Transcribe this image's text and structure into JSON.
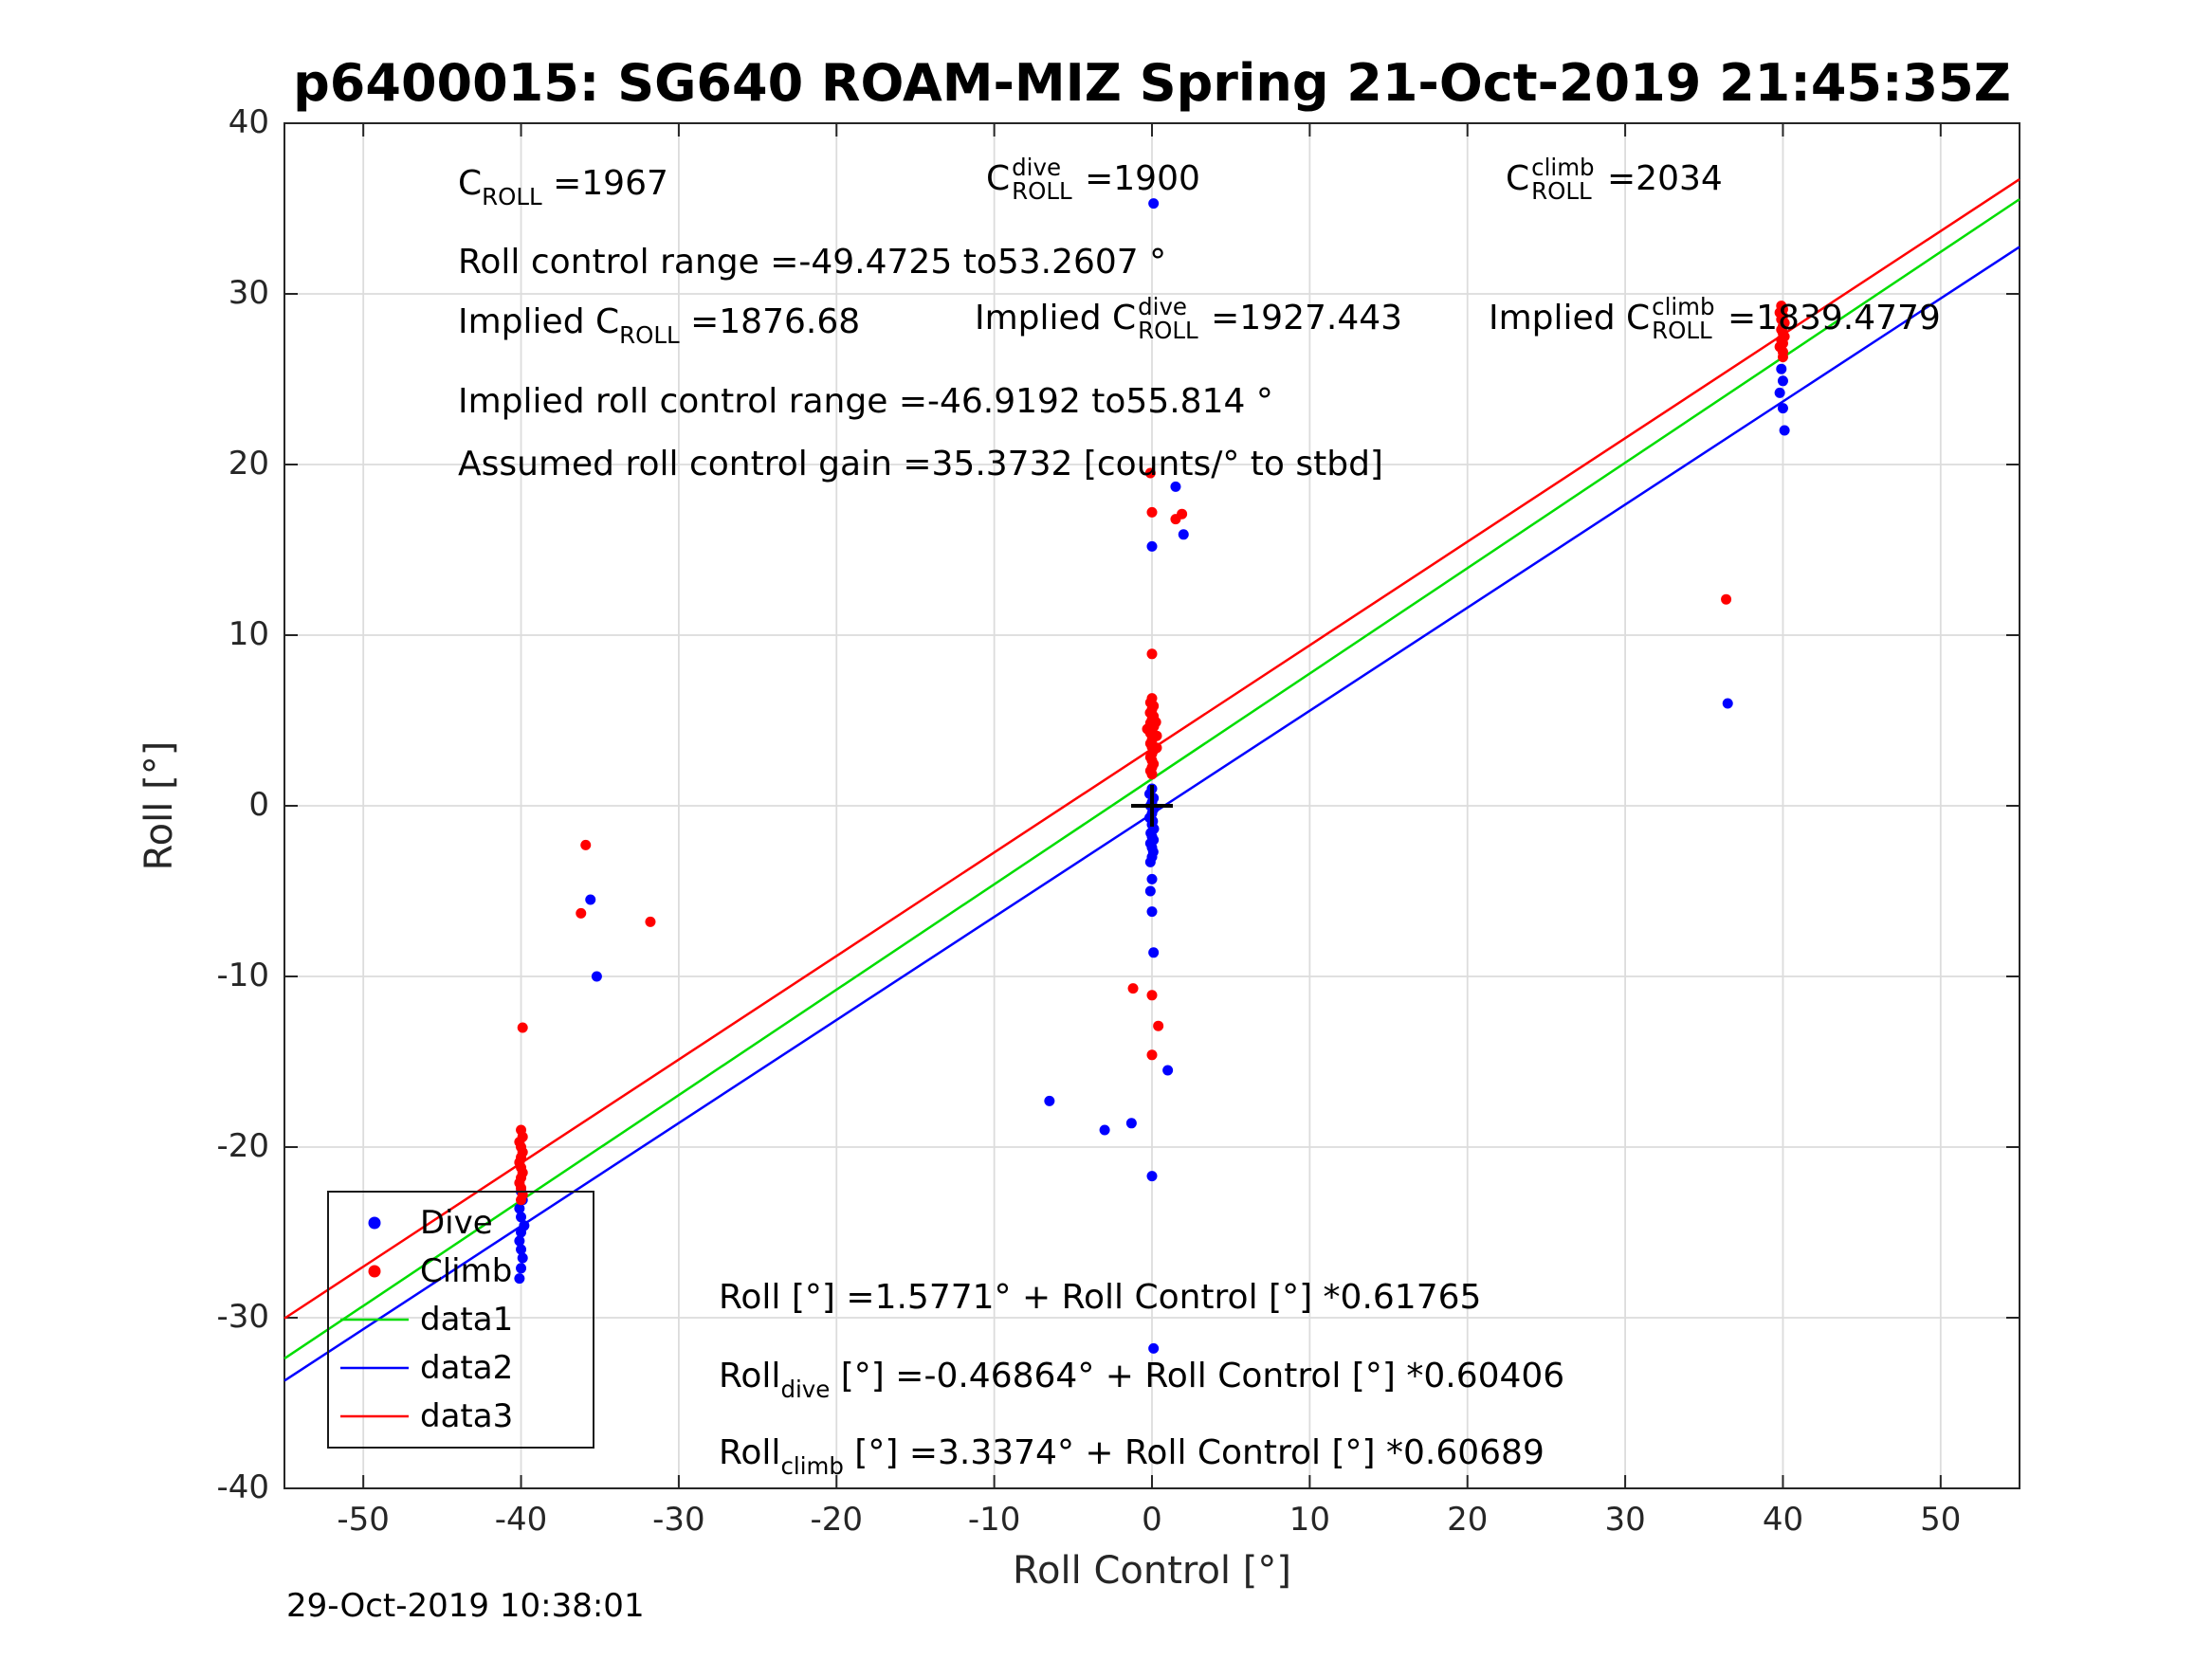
{
  "title": "p6400015: SG640 ROAM-MIZ Spring 21-Oct-2019 21:45:35Z",
  "timestamp": "29-Oct-2019 10:38:01",
  "axes": {
    "xlabel": "Roll Control [°]",
    "ylabel": "Roll [°]"
  },
  "annotations": {
    "c_roll": {
      "pre": "C",
      "sub": "ROLL",
      "post": " =1967"
    },
    "c_roll_dive": {
      "pre": "C",
      "sub": "ROLL",
      "sup": "dive",
      "post": " =1900"
    },
    "c_roll_climb": {
      "pre": "C",
      "sub": "ROLL",
      "sup": "climb",
      "post": " =2034"
    },
    "roll_control_range": "Roll control range =-49.4725 to53.2607 °",
    "implied_c_roll": {
      "pre": "Implied C",
      "sub": "ROLL",
      "post": " =1876.68"
    },
    "implied_c_roll_dive": {
      "pre": "Implied C",
      "sub": "ROLL",
      "sup": "dive",
      "post": " =1927.443"
    },
    "implied_c_roll_climb": {
      "pre": "Implied C",
      "sub": "ROLL",
      "sup": "climb",
      "post": " =1839.4779"
    },
    "implied_roll_control_range": "Implied roll control range =-46.9192 to55.814 °",
    "assumed_gain": "Assumed roll control gain =35.3732 [counts/° to stbd]",
    "fit_all": "Roll [°] =1.5771° + Roll Control [°] *0.61765",
    "fit_dive": {
      "pre": "Roll",
      "sub": "dive",
      "post": " [°] =-0.46864° + Roll Control [°] *0.60406"
    },
    "fit_climb": {
      "pre": "Roll",
      "sub": "climb",
      "post": " [°] =3.3374° + Roll Control [°] *0.60689"
    }
  },
  "legend": {
    "items": [
      {
        "label": "Dive",
        "kind": "marker",
        "color": "#0000FF"
      },
      {
        "label": "Climb",
        "kind": "marker",
        "color": "#FF0000"
      },
      {
        "label": "data1",
        "kind": "line",
        "color": "#00DD00"
      },
      {
        "label": "data2",
        "kind": "line",
        "color": "#0000FF"
      },
      {
        "label": "data3",
        "kind": "line",
        "color": "#FF0000"
      }
    ]
  },
  "chart_data": {
    "type": "scatter",
    "title": "p6400015: SG640 ROAM-MIZ Spring 21-Oct-2019 21:45:35Z",
    "xlabel": "Roll Control [°]",
    "ylabel": "Roll [°]",
    "xlim": [
      -55,
      55
    ],
    "ylim": [
      -40,
      40
    ],
    "xticks": [
      -50,
      -40,
      -30,
      -20,
      -10,
      0,
      10,
      20,
      30,
      40,
      50
    ],
    "yticks": [
      -40,
      -30,
      -20,
      -10,
      0,
      10,
      20,
      30,
      40
    ],
    "grid": true,
    "legend_position": "southwest",
    "target_marker": {
      "x": 0,
      "y": 0,
      "symbol": "+",
      "color": "#000000"
    },
    "lines": [
      {
        "name": "data1",
        "color": "#00DD00",
        "intercept": 1.5771,
        "slope": 0.61765
      },
      {
        "name": "data2",
        "color": "#0000FF",
        "intercept": -0.46864,
        "slope": 0.60406
      },
      {
        "name": "data3",
        "color": "#FF0000",
        "intercept": 3.3374,
        "slope": 0.60689
      }
    ],
    "scatter": [
      {
        "name": "Dive",
        "color": "#0000FF",
        "points": [
          [
            -40,
            -22.6
          ],
          [
            -39.9,
            -23.1
          ],
          [
            -40.1,
            -23.6
          ],
          [
            -40,
            -24.1
          ],
          [
            -39.8,
            -24.6
          ],
          [
            -40,
            -25
          ],
          [
            -40.1,
            -25.5
          ],
          [
            -40,
            -26
          ],
          [
            -39.9,
            -26.5
          ],
          [
            -40,
            -27.1
          ],
          [
            -40.1,
            -27.7
          ],
          [
            -35.6,
            -5.5
          ],
          [
            -35.2,
            -10
          ],
          [
            0.1,
            35.3
          ],
          [
            1.5,
            18.7
          ],
          [
            2,
            15.9
          ],
          [
            0,
            15.2
          ],
          [
            0,
            1
          ],
          [
            -0.15,
            0.7
          ],
          [
            0.1,
            0.45
          ],
          [
            0,
            0.2
          ],
          [
            -0.1,
            0
          ],
          [
            0.1,
            -0.2
          ],
          [
            0,
            -0.45
          ],
          [
            -0.15,
            -0.7
          ],
          [
            0.05,
            -0.9
          ],
          [
            0,
            -1.1
          ],
          [
            0.12,
            -1.35
          ],
          [
            -0.08,
            -1.6
          ],
          [
            0,
            -1.8
          ],
          [
            0.1,
            -2
          ],
          [
            -0.1,
            -2.2
          ],
          [
            0,
            -2.45
          ],
          [
            0.08,
            -2.7
          ],
          [
            0,
            -3
          ],
          [
            -0.1,
            -3.3
          ],
          [
            0,
            -4.3
          ],
          [
            -0.1,
            -5
          ],
          [
            0,
            -6.2
          ],
          [
            0.1,
            -8.6
          ],
          [
            1,
            -15.5
          ],
          [
            -6.5,
            -17.3
          ],
          [
            -3,
            -19
          ],
          [
            -1.3,
            -18.6
          ],
          [
            0,
            -21.7
          ],
          [
            0.1,
            -31.8
          ],
          [
            39.9,
            25.6
          ],
          [
            40,
            24.9
          ],
          [
            39.8,
            24.2
          ],
          [
            40,
            23.3
          ],
          [
            40.1,
            22
          ],
          [
            36.5,
            6
          ]
        ]
      },
      {
        "name": "Climb",
        "color": "#FF0000",
        "points": [
          [
            -40,
            -19
          ],
          [
            -39.9,
            -19.4
          ],
          [
            -40.1,
            -19.7
          ],
          [
            -40,
            -20
          ],
          [
            -39.9,
            -20.3
          ],
          [
            -40,
            -20.6
          ],
          [
            -40.1,
            -20.9
          ],
          [
            -40,
            -21.2
          ],
          [
            -39.9,
            -21.5
          ],
          [
            -40,
            -21.8
          ],
          [
            -40.1,
            -22.1
          ],
          [
            -40,
            -22.4
          ],
          [
            -39.9,
            -22.8
          ],
          [
            -40,
            -23.1
          ],
          [
            -39.9,
            -13
          ],
          [
            -35.9,
            -2.3
          ],
          [
            -36.2,
            -6.3
          ],
          [
            -31.8,
            -6.8
          ],
          [
            -0.1,
            19.5
          ],
          [
            0,
            17.2
          ],
          [
            1.9,
            17.1
          ],
          [
            1.5,
            16.8
          ],
          [
            0,
            8.9
          ],
          [
            0,
            6.3
          ],
          [
            -0.1,
            6.05
          ],
          [
            0.1,
            5.85
          ],
          [
            0,
            5.65
          ],
          [
            -0.12,
            5.45
          ],
          [
            0.1,
            5.25
          ],
          [
            0,
            5.05
          ],
          [
            -0.1,
            4.85
          ],
          [
            0.12,
            4.65
          ],
          [
            0,
            4.45
          ],
          [
            -0.1,
            4.25
          ],
          [
            0.1,
            4.05
          ],
          [
            0,
            3.85
          ],
          [
            -0.1,
            3.65
          ],
          [
            0,
            3.45
          ],
          [
            0.1,
            3.25
          ],
          [
            0,
            3.05
          ],
          [
            -0.1,
            2.85
          ],
          [
            0,
            2.65
          ],
          [
            0.1,
            2.45
          ],
          [
            0,
            2.25
          ],
          [
            -0.1,
            2.05
          ],
          [
            0.25,
            4.9
          ],
          [
            0.3,
            4.1
          ],
          [
            -0.3,
            4.5
          ],
          [
            0.3,
            3.4
          ],
          [
            0,
            1.85
          ],
          [
            -1.2,
            -10.7
          ],
          [
            0,
            -11.1
          ],
          [
            0.4,
            -12.9
          ],
          [
            0,
            -14.6
          ],
          [
            39.9,
            29.3
          ],
          [
            40,
            29.1
          ],
          [
            39.8,
            28.9
          ],
          [
            40,
            28.7
          ],
          [
            39.9,
            28.5
          ],
          [
            40.1,
            28.3
          ],
          [
            40,
            28.1
          ],
          [
            39.9,
            27.9
          ],
          [
            40,
            27.7
          ],
          [
            40.1,
            27.5
          ],
          [
            39.9,
            27.3
          ],
          [
            40,
            27.1
          ],
          [
            39.8,
            26.9
          ],
          [
            40,
            26.6
          ],
          [
            40,
            26.3
          ],
          [
            36.4,
            12.1
          ]
        ]
      }
    ]
  }
}
